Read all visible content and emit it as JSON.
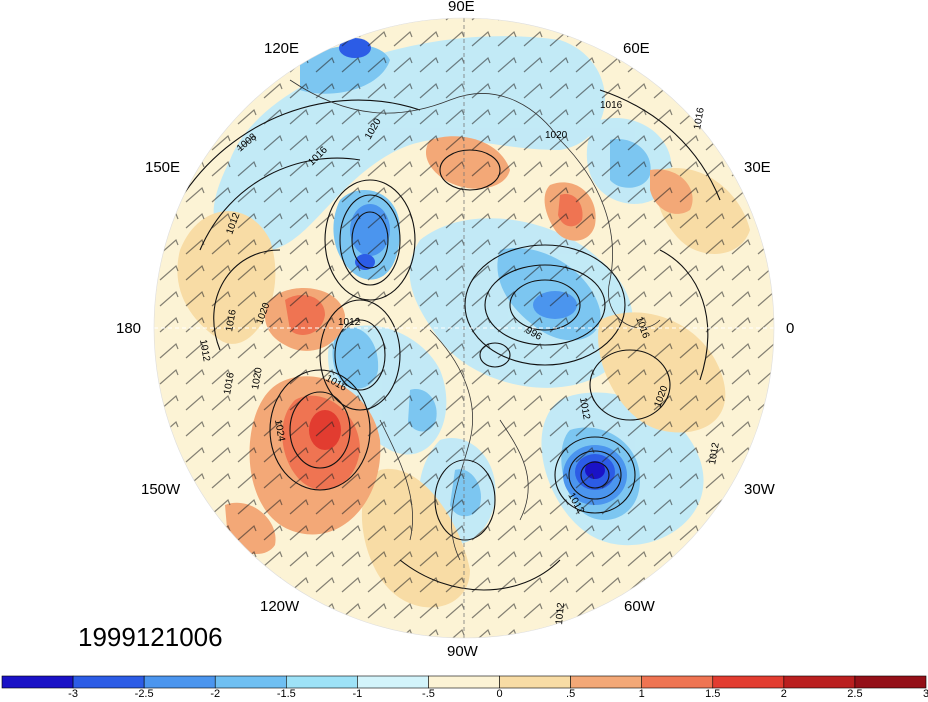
{
  "timestamp": "1999121006",
  "longitude_labels": {
    "top": "90E",
    "upper_left": "120E",
    "upper_right": "60E",
    "left_upper": "150E",
    "right_upper": "30E",
    "left": "180",
    "right": "0",
    "left_lower": "150W",
    "right_lower": "30W",
    "lower_left": "120W",
    "lower_right": "60W",
    "bottom": "90W"
  },
  "contour_labels": [
    "1016",
    "1020",
    "1008",
    "1016",
    "1012",
    "1012",
    "1016",
    "1020",
    "1020",
    "1016",
    "1024",
    "1012",
    "1016",
    "996",
    "1012",
    "1012",
    "1020",
    "1016",
    "1012",
    "1012",
    "1016",
    "1020"
  ],
  "colorbar": {
    "colors": [
      "#1a12c6",
      "#2c5ce6",
      "#4b95ee",
      "#6fbff2",
      "#9ee2f7",
      "#d3f4fb",
      "#fcf3d5",
      "#f8dca5",
      "#f3a877",
      "#ef7452",
      "#e23c30",
      "#ba1f1f",
      "#941018"
    ],
    "tick_labels": [
      "-3",
      "-2.5",
      "-2",
      "-1.5",
      "-1",
      "-.5",
      "0",
      ".5",
      "1",
      "1.5",
      "2",
      "2.5",
      "3"
    ]
  },
  "anomaly_centers": [
    {
      "id": "neg-north-asia",
      "value": -3
    },
    {
      "id": "neg-north-atlantic",
      "value": -3
    },
    {
      "id": "pos-north-pacific",
      "value": 2
    },
    {
      "id": "pos-east-europe",
      "value": 1.5
    }
  ]
}
